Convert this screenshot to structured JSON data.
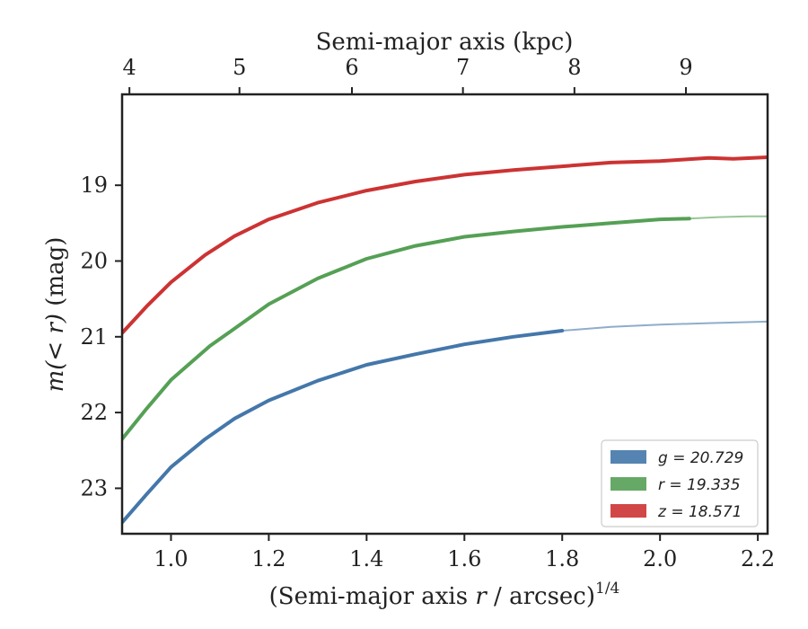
{
  "chart_data": {
    "type": "line",
    "xlabel": "(Semi-major axis r / arcsec)^1/4",
    "xlabel_parts": {
      "main": "(Semi-major axis ",
      "var": "r",
      "rest": " / arcsec)",
      "sup": "1/4"
    },
    "ylabel": "m(<r) (mag)",
    "ylabel_parts": {
      "var": "m(< r)",
      "rest": " (mag)"
    },
    "top_xlabel": "Semi-major axis (kpc)",
    "xlim": [
      0.9,
      2.22
    ],
    "ylim": [
      23.6,
      17.8
    ],
    "y_inverted": true,
    "x_ticks": [
      "1.0",
      "1.2",
      "1.4",
      "1.6",
      "1.8",
      "2.0",
      "2.2"
    ],
    "y_ticks": [
      "19",
      "20",
      "21",
      "22",
      "23"
    ],
    "top_ticks": [
      "4",
      "5",
      "6",
      "7",
      "8",
      "9"
    ],
    "top_tick_positions_x": [
      0.915,
      1.14,
      1.37,
      1.597,
      1.825,
      2.053
    ],
    "legend_position": "lower-right",
    "series": [
      {
        "name": "g = 20.729",
        "color": "#4477aa",
        "solid_x": [
          0.9,
          0.95,
          1.0,
          1.07,
          1.13,
          1.2,
          1.3,
          1.4,
          1.5,
          1.6,
          1.7,
          1.8
        ],
        "solid_y": [
          23.45,
          23.08,
          22.72,
          22.35,
          22.08,
          21.84,
          21.58,
          21.37,
          21.23,
          21.1,
          21.0,
          20.92
        ],
        "faint_x": [
          1.8,
          1.9,
          2.0,
          2.1,
          2.22
        ],
        "faint_y": [
          20.92,
          20.87,
          20.84,
          20.82,
          20.8
        ]
      },
      {
        "name": "r = 19.335",
        "color": "#55a055",
        "solid_x": [
          0.9,
          0.95,
          1.0,
          1.08,
          1.15,
          1.2,
          1.3,
          1.4,
          1.5,
          1.6,
          1.7,
          1.8,
          1.9,
          2.0,
          2.06
        ],
        "solid_y": [
          22.35,
          21.95,
          21.57,
          21.12,
          20.8,
          20.57,
          20.23,
          19.97,
          19.8,
          19.68,
          19.61,
          19.55,
          19.5,
          19.45,
          19.44
        ],
        "faint_x": [
          2.06,
          2.12,
          2.18,
          2.22
        ],
        "faint_y": [
          19.44,
          19.42,
          19.41,
          19.41
        ]
      },
      {
        "name": "z = 18.571",
        "color": "#cc3333",
        "solid_x": [
          0.9,
          0.95,
          1.0,
          1.07,
          1.13,
          1.2,
          1.3,
          1.4,
          1.5,
          1.6,
          1.7,
          1.8,
          1.9,
          2.0,
          2.05,
          2.1,
          2.15,
          2.22
        ],
        "solid_y": [
          20.95,
          20.6,
          20.28,
          19.92,
          19.67,
          19.45,
          19.23,
          19.07,
          18.95,
          18.86,
          18.8,
          18.75,
          18.7,
          18.68,
          18.66,
          18.64,
          18.65,
          18.63
        ],
        "faint_x": [],
        "faint_y": []
      }
    ]
  }
}
